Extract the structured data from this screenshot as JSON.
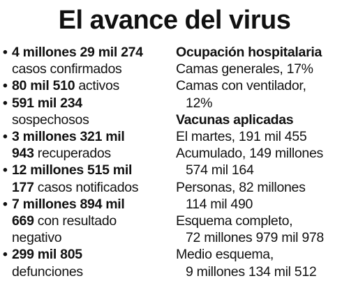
{
  "title": "El avance del virus",
  "left": {
    "confirmed": {
      "bold": "4 millones 29 mil 274",
      "text": "casos confirmados"
    },
    "active": {
      "bold": "80 mil 510",
      "text": " activos"
    },
    "suspected": {
      "bold": "591 mil 234",
      "text": "sospechosos"
    },
    "recovered": {
      "bold1": "3 millones 321 mil",
      "bold2": "943",
      "text": " recuperados"
    },
    "notified": {
      "bold1": "12 millones 515 mil",
      "bold2": "177",
      "text": " casos notificados"
    },
    "negative": {
      "bold1": "7 millones 894 mil",
      "bold2": "669",
      "text1": " con resultado",
      "text2": "negativo"
    },
    "deaths": {
      "bold": "299 mil 805",
      "text": "defunciones"
    }
  },
  "right": {
    "hospital_heading": "Ocupación hospitalaria",
    "general_beds": "Camas generales, 17%",
    "ventilator_beds_label": "Camas con ventilador,",
    "ventilator_beds_value": "12%",
    "vaccines_heading": "Vacunas aplicadas",
    "tuesday": "El martes, 191 mil 455",
    "accumulated_label": "Acumulado, 149 millones",
    "accumulated_value": "574 mil 164",
    "people_label": "Personas, 82 millones",
    "people_value": "114 mil 490",
    "complete_label": "Esquema completo,",
    "complete_value": "72 millones 979 mil 978",
    "half_label": "Medio esquema,",
    "half_value": "9 millones 134 mil 512"
  },
  "bullet_char": "•"
}
